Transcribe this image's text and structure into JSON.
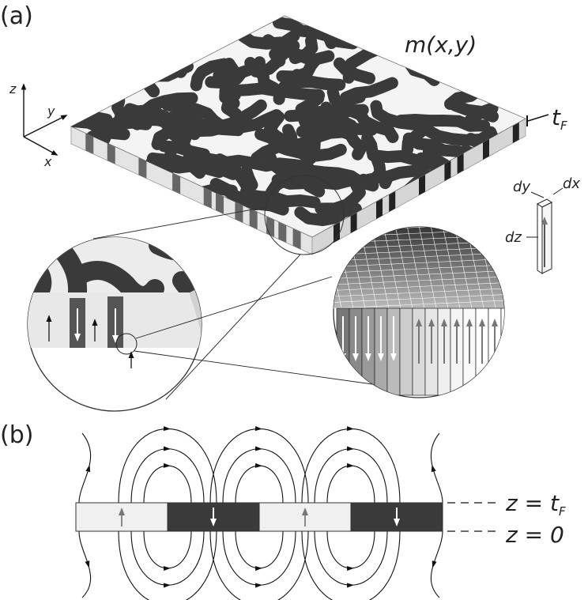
{
  "panel_a": {
    "label": "(a)",
    "magnetization_label": "m(x,y)",
    "thickness_label": "t",
    "thickness_sub": "F",
    "axes": {
      "z": "z",
      "y": "y",
      "x": "x"
    },
    "cell": {
      "dx": "dx",
      "dy": "dy",
      "dz": "dz"
    }
  },
  "panel_b": {
    "label": "(b)",
    "top_label": "z = t",
    "top_sub": "F",
    "bottom_label": "z = 0",
    "domains": [
      "up",
      "down",
      "up",
      "down"
    ]
  },
  "colors": {
    "dark_domain": "#3a3a3a",
    "light_domain": "#f0f0f0",
    "arrow_light": "#888888",
    "arrow_dark": "#ffffff"
  }
}
